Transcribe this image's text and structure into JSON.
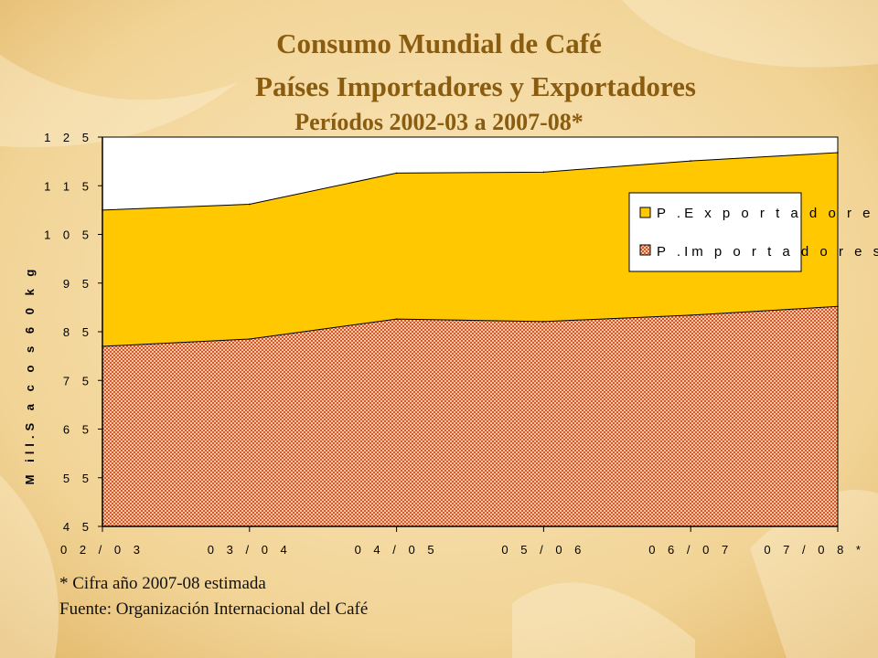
{
  "header": {
    "title": "Consumo Mundial de Café",
    "subtitle": "Países Importadores y Exportadores",
    "period": "Períodos 2002-03 a 2007-08*"
  },
  "footnotes": {
    "note": "* Cifra año 2007-08 estimada",
    "source": "Fuente: Organización Internacional del Café"
  },
  "colors": {
    "exporters": "#ffc800",
    "importers": "#e8825a",
    "title": "#8a5c10"
  },
  "chart_data": {
    "type": "area",
    "stacked": false,
    "ylabel": "M ill.S a c o s 6 0 k g",
    "ytick_labels": [
      "4 5",
      "5 5",
      "6 5",
      "7 5",
      "8 5",
      "9 5",
      "1 0 5",
      "1 1 5",
      "1 2 5"
    ],
    "yticks": [
      45,
      55,
      65,
      75,
      85,
      95,
      105,
      115,
      125
    ],
    "ylim": [
      45,
      125
    ],
    "categories": [
      "0 2 / 0 3",
      "0 3 / 0 4",
      "0 4 / 0 5",
      "0 5 / 0 6",
      "0 6 / 0 7",
      "0 7 / 0 8 *"
    ],
    "legend_position": "right",
    "series": [
      {
        "name": "P .E x p o r t a d o r e s .",
        "values": [
          110.0,
          111.2,
          117.6,
          117.8,
          120.1,
          121.8
        ]
      },
      {
        "name": "P .Im p o r t a d o r e s",
        "values": [
          82.0,
          83.5,
          87.6,
          87.1,
          88.4,
          90.2
        ]
      }
    ]
  }
}
